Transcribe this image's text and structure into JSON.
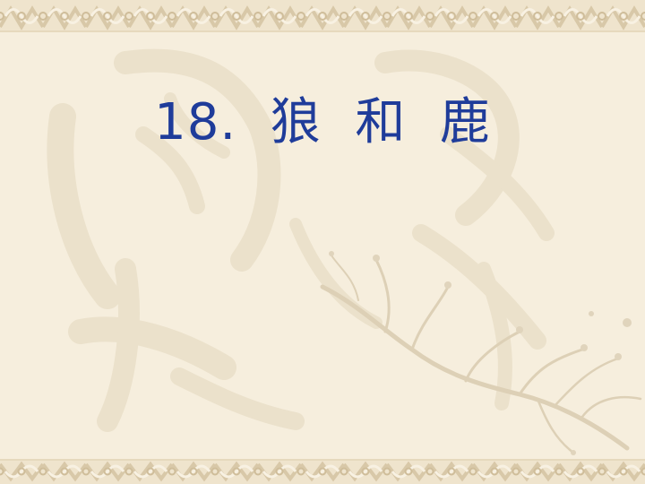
{
  "slide": {
    "title": "18.  狼  和  鹿"
  },
  "colors": {
    "background": "#f6eedd",
    "title": "#1f3c9a",
    "border": "#e2d2b2",
    "ornament": "#e9dcc3"
  }
}
